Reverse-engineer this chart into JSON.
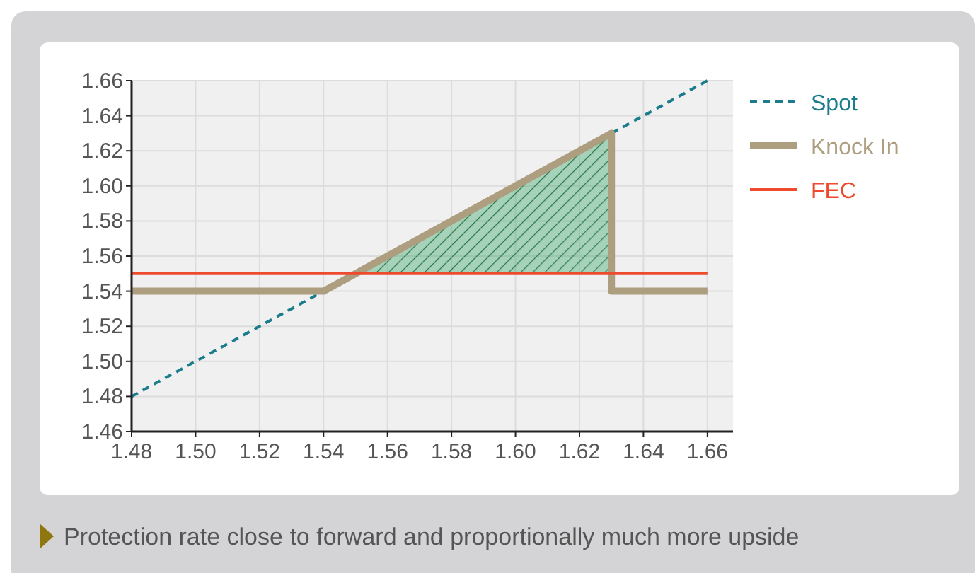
{
  "chart_data": {
    "type": "line",
    "xlim": [
      1.48,
      1.668
    ],
    "ylim": [
      1.46,
      1.66
    ],
    "xticks": [
      {
        "value": 1.48,
        "label": "1.48"
      },
      {
        "value": 1.5,
        "label": "1.50"
      },
      {
        "value": 1.52,
        "label": "1.52"
      },
      {
        "value": 1.54,
        "label": "1.54"
      },
      {
        "value": 1.56,
        "label": "1.56"
      },
      {
        "value": 1.58,
        "label": "1.58"
      },
      {
        "value": 1.6,
        "label": "1.60"
      },
      {
        "value": 1.62,
        "label": "1.62"
      },
      {
        "value": 1.64,
        "label": "1.64"
      },
      {
        "value": 1.66,
        "label": "1.66"
      }
    ],
    "yticks": [
      {
        "value": 1.46,
        "label": "1.46"
      },
      {
        "value": 1.48,
        "label": "1.48"
      },
      {
        "value": 1.5,
        "label": "1.50"
      },
      {
        "value": 1.52,
        "label": "1.52"
      },
      {
        "value": 1.54,
        "label": "1.54"
      },
      {
        "value": 1.56,
        "label": "1.56"
      },
      {
        "value": 1.58,
        "label": "1.58"
      },
      {
        "value": 1.6,
        "label": "1.60"
      },
      {
        "value": 1.62,
        "label": "1.62"
      },
      {
        "value": 1.64,
        "label": "1.64"
      },
      {
        "value": 1.66,
        "label": "1.66"
      }
    ],
    "grid": true,
    "legend": "top right",
    "series": [
      {
        "type": "area",
        "color": "#3aa56a",
        "x": [
          1.55,
          1.63,
          1.63
        ],
        "values": [
          1.55,
          1.63,
          1.55
        ]
      },
      {
        "name": "Spot",
        "color": "#1b7d8c",
        "line_style": "dashed",
        "x": [
          1.48,
          1.66
        ],
        "values": [
          1.48,
          1.66
        ]
      },
      {
        "name": "Knock In",
        "color": "#ad9e80",
        "x": [
          1.48,
          1.54,
          1.63,
          1.63,
          1.66
        ],
        "values": [
          1.54,
          1.54,
          1.63,
          1.54,
          1.54
        ]
      },
      {
        "name": "FEC",
        "color": "#ee4a2e",
        "x": [
          1.48,
          1.66
        ],
        "values": [
          1.55,
          1.55
        ]
      }
    ],
    "annotations": [
      "Protection rate close to forward and proportionally much more upside"
    ]
  }
}
